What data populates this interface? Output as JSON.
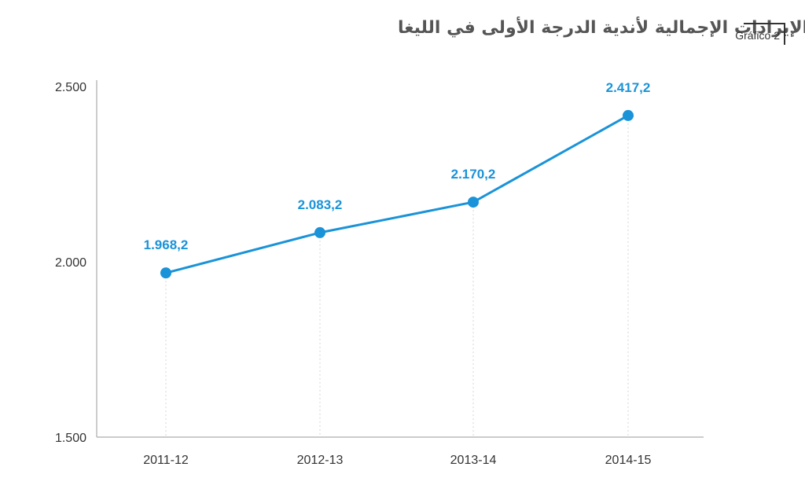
{
  "header": {
    "title": "الإيرادات الإجمالية لأندية الدرجة الأولى في الليغا",
    "figure_tag": "Gráfico 2"
  },
  "colors": {
    "series": "#1a93d8",
    "axis": "#bbbbbb",
    "guide": "#d6d6d6"
  },
  "chart_data": {
    "type": "line",
    "title": "الإيرادات الإجمالية لأندية الدرجة الأولى في الليغا",
    "xlabel": "",
    "ylabel": "",
    "categories": [
      "2011-12",
      "2012-13",
      "2013-14",
      "2014-15"
    ],
    "series": [
      {
        "values": [
          1968.2,
          2083.2,
          2170.2,
          2417.2
        ],
        "labels": [
          "1.968,2",
          "2.083,2",
          "2.170,2",
          "2.417,2"
        ]
      }
    ],
    "ylim": [
      1500,
      2500
    ],
    "yticks": [
      1500,
      2000,
      2500
    ],
    "ytick_labels": [
      "1.500",
      "2.000",
      "2.500"
    ],
    "grid": false,
    "legend": "none"
  }
}
